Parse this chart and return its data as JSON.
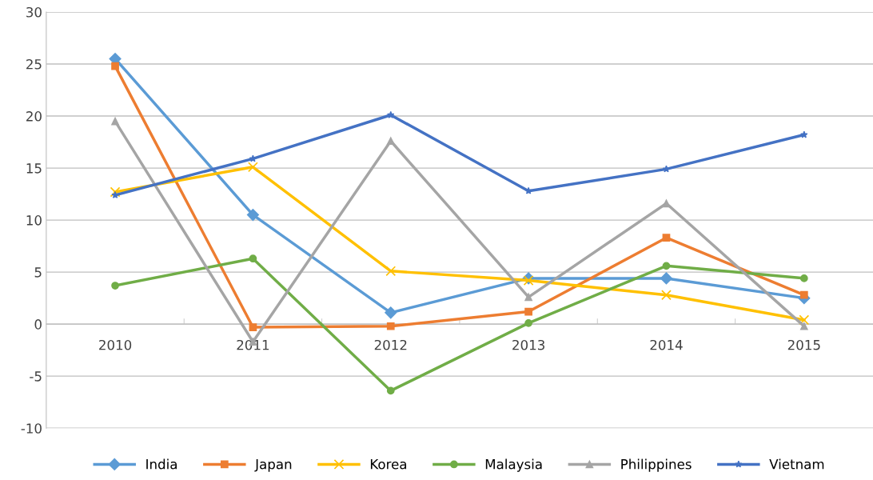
{
  "chart_data": {
    "type": "line",
    "categories": [
      "2010",
      "2011",
      "2012",
      "2013",
      "2014",
      "2015"
    ],
    "series": [
      {
        "name": "India",
        "color": "#5b9bd5",
        "marker": "diamond",
        "values": [
          25.5,
          10.5,
          1.1,
          4.4,
          4.4,
          2.5
        ]
      },
      {
        "name": "Japan",
        "color": "#ed7d31",
        "marker": "square",
        "values": [
          24.8,
          -0.3,
          -0.2,
          1.2,
          8.3,
          2.8
        ]
      },
      {
        "name": "Korea",
        "color": "#ffc000",
        "marker": "cross",
        "values": [
          12.7,
          15.1,
          5.1,
          4.2,
          2.8,
          0.4
        ]
      },
      {
        "name": "Malaysia",
        "color": "#70ad47",
        "marker": "circle",
        "values": [
          3.7,
          6.3,
          -6.4,
          0.1,
          5.6,
          4.4
        ]
      },
      {
        "name": "Philippines",
        "color": "#a5a5a5",
        "marker": "triangle",
        "values": [
          19.5,
          -1.7,
          17.6,
          2.6,
          11.6,
          -0.2
        ]
      },
      {
        "name": "Vietnam",
        "color": "#4472c4",
        "marker": "star",
        "values": [
          12.4,
          15.9,
          20.1,
          12.8,
          14.9,
          18.2
        ]
      }
    ],
    "ylim": [
      -10,
      30
    ],
    "yticks": [
      -10,
      -5,
      0,
      5,
      10,
      15,
      20,
      25,
      30
    ],
    "grid": "y",
    "legend": "bottom",
    "line_style": "solid"
  }
}
